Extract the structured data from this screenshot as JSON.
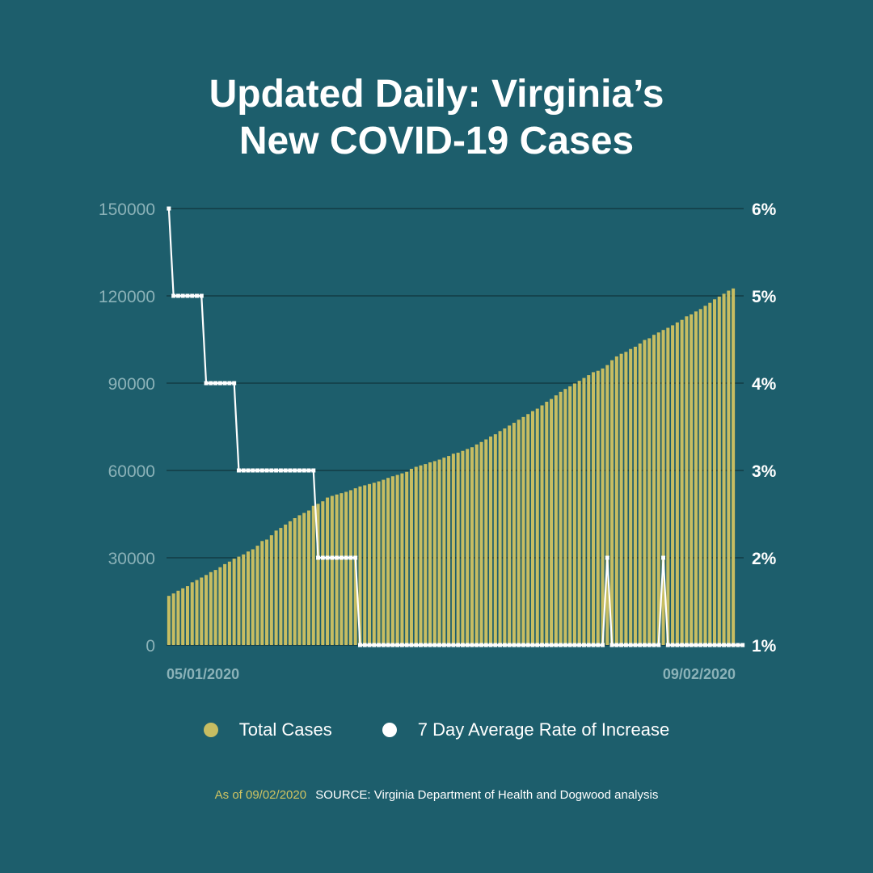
{
  "colors": {
    "background": "#1d5e6c",
    "bars": "#c7bd62",
    "line": "#ffffff",
    "left_axis_text": "#8bb2b8",
    "right_axis_text": "#ffffff",
    "grid": "#0d2a30",
    "footer_date": "#cfc462"
  },
  "title": {
    "line1": "Updated Daily: Virginia’s",
    "line2": "New COVID-19 Cases"
  },
  "legend": {
    "total_cases": "Total Cases",
    "rate": "7 Day Average Rate of Increase"
  },
  "footer": {
    "as_of": "As of 09/02/2020",
    "source": "SOURCE: Virginia Department of Health and Dogwood analysis"
  },
  "chart_data": {
    "type": "bar",
    "x_start_label": "05/01/2020",
    "x_end_label": "09/02/2020",
    "left_axis": {
      "ylim": [
        0,
        150000
      ],
      "ticks": [
        0,
        30000,
        60000,
        90000,
        120000,
        150000
      ],
      "tick_labels": [
        "0",
        "30000",
        "60000",
        "90000",
        "120000",
        "150000"
      ]
    },
    "right_axis": {
      "ylim": [
        1,
        6
      ],
      "ticks": [
        1,
        2,
        3,
        4,
        5,
        6
      ],
      "tick_labels": [
        "1%",
        "2%",
        "3%",
        "4%",
        "5%",
        "6%"
      ]
    },
    "grid": true,
    "legend_position": "bottom",
    "series": [
      {
        "name": "Total Cases",
        "type": "bar",
        "axis": "left",
        "values": [
          16901,
          17731,
          18671,
          19492,
          20256,
          21570,
          22342,
          23196,
          24081,
          25070,
          25800,
          26746,
          27813,
          28672,
          29683,
          30388,
          31140,
          32145,
          32908,
          34137,
          35749,
          36244,
          37727,
          39342,
          40249,
          41401,
          42533,
          43611,
          44607,
          45398,
          46239,
          47856,
          48532,
          49397,
          50681,
          51251,
          51738,
          52177,
          52647,
          53211,
          53869,
          54506,
          54886,
          55331,
          55775,
          56238,
          56793,
          57443,
          57994,
          58465,
          58994,
          59514,
          60570,
          61247,
          61736,
          62189,
          62787,
          63203,
          63735,
          64393,
          64979,
          65748,
          66102,
          66740,
          67375,
          67988,
          68931,
          69782,
          70670,
          71642,
          72443,
          73527,
          74431,
          75433,
          76373,
          77430,
          78375,
          79371,
          80393,
          81237,
          82364,
          83609,
          84567,
          85801,
          86994,
          87993,
          88904,
          89888,
          90801,
          91782,
          92756,
          93772,
          94251,
          95049,
          96213,
          97882,
          99189,
          100086,
          100749,
          101745,
          102521,
          103622,
          104838,
          105430,
          106602,
          107421,
          108282,
          109019,
          109882,
          110860,
          111750,
          112966,
          113630,
          114635,
          115458,
          116579,
          117592,
          118809,
          119747,
          120729,
          121794,
          122542
        ]
      },
      {
        "name": "7 Day Average Rate of Increase",
        "type": "line",
        "axis": "right",
        "values": [
          6,
          5,
          5,
          5,
          5,
          5,
          5,
          5,
          4,
          4,
          4,
          4,
          4,
          4,
          4,
          3,
          3,
          3,
          3,
          3,
          3,
          3,
          3,
          3,
          3,
          3,
          3,
          3,
          3,
          3,
          3,
          3,
          2,
          2,
          2,
          2,
          2,
          2,
          2,
          2,
          2,
          1,
          1,
          1,
          1,
          1,
          1,
          1,
          1,
          1,
          1,
          1,
          1,
          1,
          1,
          1,
          1,
          1,
          1,
          1,
          1,
          1,
          1,
          1,
          1,
          1,
          1,
          1,
          1,
          1,
          1,
          1,
          1,
          1,
          1,
          1,
          1,
          1,
          1,
          1,
          1,
          1,
          1,
          1,
          1,
          1,
          1,
          1,
          1,
          1,
          1,
          1,
          1,
          1,
          2,
          1,
          1,
          1,
          1,
          1,
          1,
          1,
          1,
          1,
          1,
          1,
          2,
          1,
          1,
          1,
          1,
          1,
          1,
          1,
          1,
          1,
          1,
          1,
          1,
          1,
          1,
          1,
          1,
          1
        ]
      }
    ]
  }
}
